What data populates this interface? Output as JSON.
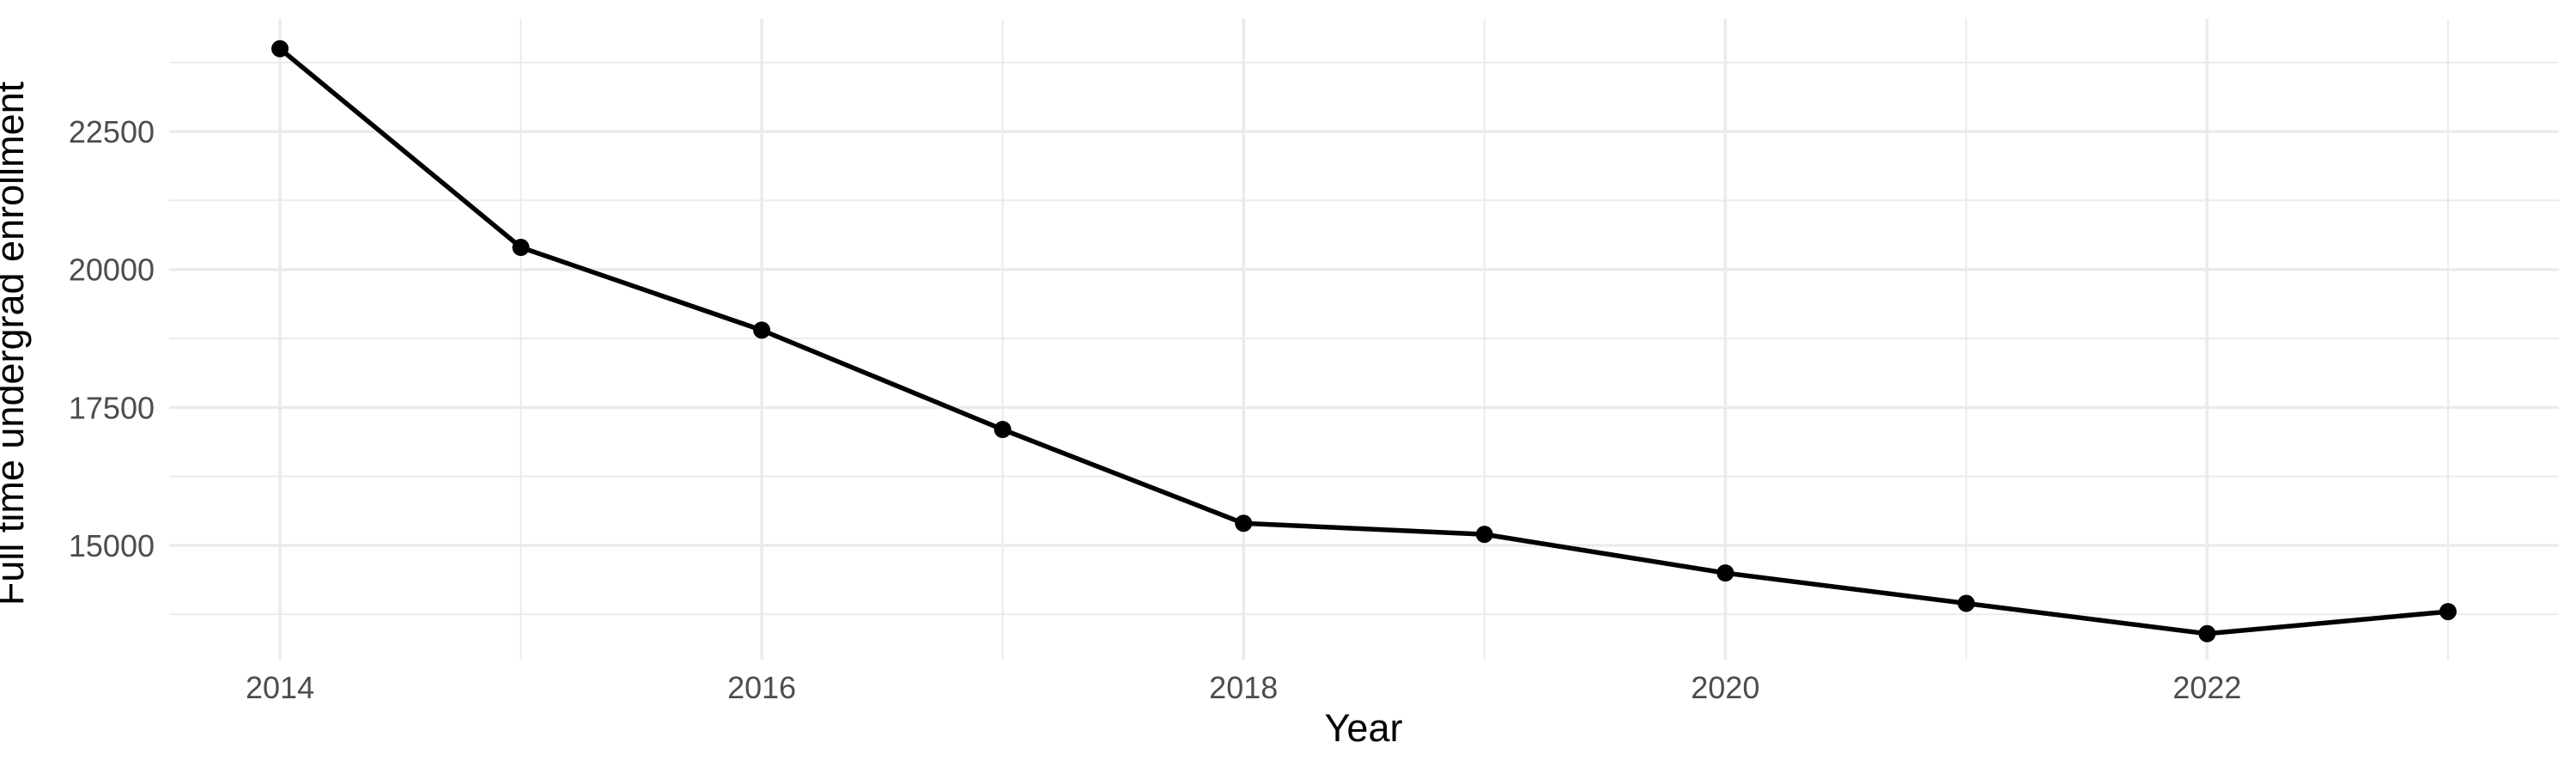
{
  "chart_data": {
    "type": "line",
    "title": "",
    "xlabel": "Year",
    "ylabel": "Full time undergrad enrollment",
    "x": [
      2014,
      2015,
      2016,
      2017,
      2018,
      2019,
      2020,
      2021,
      2022,
      2023
    ],
    "values": [
      24000,
      20400,
      18900,
      17100,
      15400,
      15200,
      14500,
      13950,
      13400,
      13800
    ],
    "series_name": "Full time undergrad enrollment",
    "x_ticks": {
      "major": [
        2014,
        2016,
        2018,
        2020,
        2022
      ],
      "labels": [
        "2014",
        "2016",
        "2018",
        "2020",
        "2022"
      ],
      "minor": [
        2015,
        2017,
        2019,
        2021,
        2023
      ]
    },
    "y_ticks": {
      "major": [
        15000,
        17500,
        20000,
        22500
      ],
      "labels": [
        "15000",
        "17500",
        "20000",
        "22500"
      ],
      "minor": [
        13750,
        16250,
        18750,
        21250,
        23750
      ]
    },
    "xlim": [
      2013.54,
      2023.46
    ],
    "ylim": [
      12930,
      24540
    ],
    "grid": true,
    "legend": false,
    "marker": "point",
    "colors": {
      "line": "#000000",
      "point": "#000000",
      "grid": "#EBEBEB",
      "tick_label": "#4D4D4D",
      "axis_title": "#000000",
      "background": "#FFFFFF"
    }
  }
}
